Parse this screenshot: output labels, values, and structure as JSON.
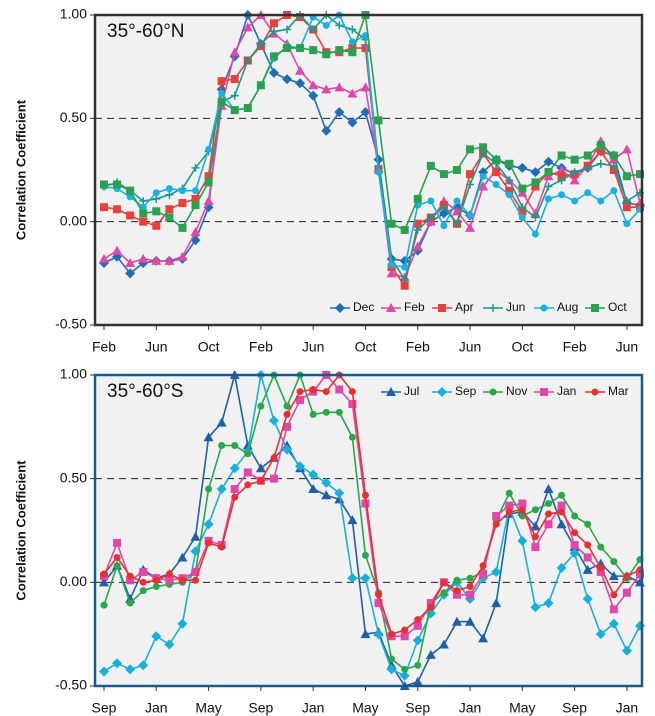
{
  "chart_data": [
    {
      "type": "line",
      "title": "35°-60°N",
      "y_label": "Correlation Coefficient",
      "categories": [
        "Feb",
        null,
        null,
        null,
        "Jun",
        null,
        null,
        null,
        "Oct",
        null,
        null,
        null,
        "Feb",
        null,
        null,
        null,
        "Jun",
        null,
        null,
        null,
        "Oct",
        null,
        null,
        null,
        "Feb",
        null,
        null,
        null,
        "Jun",
        null,
        null,
        null,
        "Oct",
        null,
        null,
        null,
        "Feb",
        null,
        null,
        null,
        "Jun",
        null
      ],
      "ylim": [
        -0.5,
        1.0
      ],
      "yticks": [
        {
          "value": -0.5,
          "label": "-0.50"
        },
        {
          "value": 0,
          "label": "0.00"
        },
        {
          "value": 0.5,
          "label": "0.50"
        },
        {
          "value": 1.0,
          "label": "1.00"
        }
      ],
      "grid": "dashed",
      "legend": "lower right",
      "frame_color": "#333333",
      "series": [
        {
          "name": "Dec",
          "color": "#1f6db8",
          "marker": "diamond",
          "values": [
            -0.2,
            -0.17,
            -0.25,
            -0.2,
            -0.19,
            -0.19,
            -0.18,
            -0.09,
            0.07,
            0.64,
            0.8,
            1.0,
            0.86,
            0.72,
            0.69,
            0.67,
            0.61,
            0.44,
            0.53,
            0.48,
            0.53,
            0.3,
            -0.18,
            -0.19,
            -0.14,
            0.0,
            0.04,
            0.07,
            0.03,
            0.24,
            0.3,
            0.27,
            0.26,
            0.24,
            0.29,
            0.26,
            0.23,
            0.26,
            0.34,
            0.32,
            0.09,
            0.08
          ]
        },
        {
          "name": "Feb",
          "color": "#e048a8",
          "marker": "triangle",
          "values": [
            -0.18,
            -0.14,
            -0.2,
            -0.18,
            -0.19,
            -0.19,
            -0.17,
            -0.05,
            0.1,
            0.56,
            0.82,
            0.94,
            1.0,
            0.91,
            0.86,
            0.73,
            0.66,
            0.64,
            0.65,
            0.62,
            0.65,
            0.26,
            -0.25,
            -0.27,
            -0.12,
            0.0,
            0.1,
            0.05,
            -0.03,
            0.17,
            0.25,
            0.2,
            0.14,
            0.04,
            0.22,
            0.25,
            0.2,
            0.27,
            0.39,
            0.3,
            0.35,
            0.09
          ]
        },
        {
          "name": "Apr",
          "color": "#e8403a",
          "marker": "square",
          "values": [
            0.07,
            0.06,
            0.03,
            0.0,
            -0.02,
            0.06,
            0.09,
            0.11,
            0.22,
            0.68,
            0.69,
            0.78,
            0.85,
            0.96,
            1.0,
            0.99,
            0.93,
            0.82,
            0.82,
            0.84,
            0.84,
            0.25,
            -0.22,
            -0.31,
            -0.01,
            0.02,
            0.08,
            -0.01,
            0.23,
            0.33,
            0.24,
            0.15,
            0.05,
            0.17,
            0.24,
            0.22,
            0.23,
            0.27,
            0.34,
            0.25,
            0.07,
            0.07
          ]
        },
        {
          "name": "Jun",
          "color": "#1a9a8c",
          "marker": "plus",
          "values": [
            0.17,
            0.19,
            0.15,
            0.1,
            0.11,
            0.13,
            0.16,
            0.26,
            0.34,
            0.58,
            0.61,
            0.78,
            0.86,
            0.92,
            0.93,
            1.0,
            0.93,
            1.0,
            0.95,
            0.93,
            0.88,
            0.27,
            -0.18,
            -0.28,
            -0.04,
            0.02,
            0.07,
            -0.01,
            0.18,
            0.33,
            0.28,
            0.2,
            0.07,
            0.02,
            0.17,
            0.2,
            0.24,
            0.26,
            0.28,
            0.27,
            0.1,
            0.14
          ]
        },
        {
          "name": "Aug",
          "color": "#1ab0e0",
          "marker": "circle",
          "values": [
            0.17,
            0.16,
            0.12,
            0.07,
            0.14,
            0.16,
            0.15,
            0.15,
            0.35,
            0.62,
            0.54,
            0.55,
            0.66,
            0.79,
            0.85,
            0.84,
            0.99,
            0.95,
            1.0,
            0.87,
            0.9,
            0.24,
            -0.21,
            -0.22,
            0.08,
            0.1,
            -0.02,
            0.1,
            0.03,
            0.22,
            0.18,
            0.13,
            0.02,
            -0.06,
            0.11,
            0.13,
            0.1,
            0.14,
            0.1,
            0.15,
            -0.01,
            0.06
          ]
        },
        {
          "name": "Oct",
          "color": "#2aa050",
          "marker": "square",
          "values": [
            0.18,
            0.18,
            0.15,
            0.04,
            0.05,
            0.02,
            -0.03,
            0.08,
            0.19,
            0.58,
            0.54,
            0.55,
            0.66,
            0.8,
            0.84,
            0.84,
            0.83,
            0.81,
            0.83,
            0.82,
            1.0,
            0.49,
            -0.01,
            -0.04,
            0.11,
            0.27,
            0.23,
            0.25,
            0.35,
            0.36,
            0.3,
            0.28,
            0.16,
            0.19,
            0.24,
            0.32,
            0.3,
            0.32,
            0.37,
            0.32,
            0.22,
            0.23
          ]
        }
      ]
    },
    {
      "type": "line",
      "title": "35°-60°S",
      "y_label": "Correlation Coefficient",
      "categories": [
        "Sep",
        null,
        null,
        null,
        "Jan",
        null,
        null,
        null,
        "May",
        null,
        null,
        null,
        "Sep",
        null,
        null,
        null,
        "Jan",
        null,
        null,
        null,
        "May",
        null,
        null,
        null,
        "Sep",
        null,
        null,
        null,
        "Jan",
        null,
        null,
        null,
        "May",
        null,
        null,
        null,
        "Sep",
        null,
        null,
        null,
        "Jan",
        null
      ],
      "ylim": [
        -0.5,
        1.0
      ],
      "yticks": [
        {
          "value": -0.5,
          "label": "-0.50"
        },
        {
          "value": 0,
          "label": "0.00"
        },
        {
          "value": 0.5,
          "label": "0.50"
        },
        {
          "value": 1.0,
          "label": "1.00"
        }
      ],
      "grid": "dashed",
      "legend": "upper right",
      "frame_color": "#1a5a8a",
      "series": [
        {
          "name": "Jul",
          "color": "#1f5fa8",
          "marker": "triangle",
          "values": [
            0.0,
            0.08,
            -0.08,
            0.06,
            0.02,
            0.04,
            0.12,
            0.22,
            0.7,
            0.77,
            1.0,
            0.66,
            0.55,
            0.6,
            0.66,
            0.55,
            0.45,
            0.42,
            0.4,
            0.3,
            -0.25,
            -0.24,
            -0.4,
            -0.5,
            -0.48,
            -0.35,
            -0.3,
            -0.19,
            -0.19,
            -0.27,
            -0.1,
            0.33,
            0.34,
            0.27,
            0.45,
            0.28,
            0.17,
            0.06,
            0.09,
            0.03,
            0.03,
            0.0
          ]
        },
        {
          "name": "Sep",
          "color": "#18b0d8",
          "marker": "diamond",
          "values": [
            -0.43,
            -0.39,
            -0.42,
            -0.4,
            -0.26,
            -0.3,
            -0.2,
            0.15,
            0.28,
            0.45,
            0.55,
            0.63,
            1.0,
            0.78,
            0.64,
            0.56,
            0.52,
            0.48,
            0.43,
            0.02,
            0.02,
            -0.25,
            -0.42,
            -0.45,
            -0.28,
            -0.15,
            -0.06,
            0.0,
            -0.08,
            0.02,
            0.05,
            0.36,
            0.2,
            -0.12,
            -0.1,
            0.07,
            0.14,
            -0.08,
            -0.25,
            -0.2,
            -0.33,
            -0.21
          ]
        },
        {
          "name": "Nov",
          "color": "#28a848",
          "marker": "circle",
          "values": [
            -0.11,
            0.08,
            -0.1,
            -0.04,
            -0.02,
            -0.01,
            0.0,
            0.05,
            0.45,
            0.66,
            0.66,
            0.62,
            0.85,
            1.0,
            0.85,
            1.0,
            0.81,
            0.82,
            0.82,
            0.7,
            0.13,
            -0.05,
            -0.37,
            -0.42,
            -0.4,
            -0.1,
            -0.05,
            0.01,
            0.02,
            0.05,
            0.3,
            0.43,
            0.32,
            0.35,
            0.38,
            0.42,
            0.32,
            0.28,
            0.17,
            0.1,
            0.02,
            0.11
          ]
        },
        {
          "name": "Jan",
          "color": "#e048a8",
          "marker": "square",
          "values": [
            0.03,
            0.19,
            0.01,
            0.05,
            0.02,
            0.01,
            0.02,
            0.05,
            0.2,
            0.18,
            0.45,
            0.53,
            0.49,
            0.5,
            0.75,
            0.88,
            0.92,
            1.0,
            0.93,
            0.86,
            0.38,
            -0.1,
            -0.26,
            -0.26,
            -0.21,
            -0.1,
            0.0,
            -0.06,
            -0.06,
            0.04,
            0.32,
            0.37,
            0.38,
            0.17,
            0.28,
            0.37,
            0.18,
            0.12,
            0.05,
            -0.13,
            -0.05,
            0.04
          ]
        },
        {
          "name": "Mar",
          "color": "#e83030",
          "marker": "circle",
          "values": [
            0.04,
            0.12,
            0.03,
            0.0,
            0.01,
            0.04,
            0.01,
            0.01,
            0.19,
            0.17,
            0.41,
            0.47,
            0.49,
            0.6,
            0.81,
            0.92,
            0.93,
            0.92,
            1.0,
            0.92,
            0.42,
            -0.06,
            -0.25,
            -0.23,
            -0.18,
            -0.12,
            0.0,
            -0.04,
            -0.02,
            0.08,
            0.28,
            0.34,
            0.35,
            0.22,
            0.33,
            0.34,
            0.24,
            0.18,
            0.07,
            -0.06,
            0.03,
            0.06
          ]
        }
      ]
    }
  ]
}
